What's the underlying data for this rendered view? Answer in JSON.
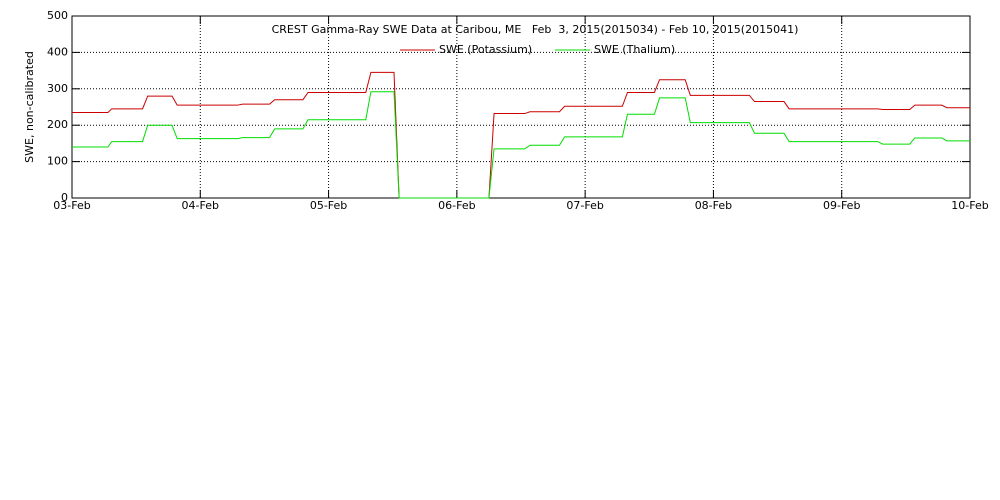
{
  "chart_data": {
    "type": "line",
    "title": "CREST Gamma-Ray SWE Data at Caribou, ME   Feb  3, 2015(2015034) - Feb 10, 2015(2015041)",
    "y_label": "SWE, non-calibrated",
    "x": [
      0,
      0.28,
      0.31,
      0.55,
      0.59,
      0.78,
      0.82,
      1.29,
      1.33,
      1.54,
      1.58,
      1.8,
      1.84,
      2.29,
      2.33,
      2.51,
      2.55,
      3.25,
      3.29,
      3.53,
      3.57,
      3.8,
      3.84,
      4.29,
      4.33,
      4.54,
      4.58,
      4.78,
      4.82,
      5.28,
      5.32,
      5.55,
      5.59,
      6.28,
      6.32,
      6.53,
      6.57,
      6.78,
      6.82,
      7
    ],
    "series": [
      {
        "name": "SWE (Potassium)",
        "color": "#cc0000",
        "values": [
          235,
          235,
          245,
          245,
          280,
          280,
          255,
          255,
          258,
          258,
          270,
          270,
          290,
          290,
          345,
          345,
          0,
          0,
          232,
          232,
          237,
          237,
          252,
          252,
          290,
          290,
          325,
          325,
          282,
          282,
          265,
          265,
          245,
          245,
          243,
          243,
          255,
          255,
          248,
          248
        ]
      },
      {
        "name": "SWE (Thalium)",
        "color": "#00dd00",
        "values": [
          140,
          140,
          155,
          155,
          200,
          200,
          163,
          163,
          166,
          166,
          190,
          190,
          215,
          215,
          292,
          292,
          0,
          0,
          135,
          135,
          145,
          145,
          168,
          168,
          230,
          230,
          275,
          275,
          207,
          207,
          178,
          178,
          155,
          155,
          148,
          148,
          165,
          165,
          157,
          157
        ]
      }
    ],
    "xlim": [
      0,
      7
    ],
    "xticks": [
      {
        "value": 0,
        "label": "03-Feb"
      },
      {
        "value": 1,
        "label": "04-Feb"
      },
      {
        "value": 2,
        "label": "05-Feb"
      },
      {
        "value": 3,
        "label": "06-Feb"
      },
      {
        "value": 4,
        "label": "07-Feb"
      },
      {
        "value": 5,
        "label": "08-Feb"
      },
      {
        "value": 6,
        "label": "09-Feb"
      },
      {
        "value": 7,
        "label": "10-Feb"
      }
    ],
    "ylim": [
      0,
      500
    ],
    "yticks": [
      0,
      100,
      200,
      300,
      400,
      500
    ],
    "grid": true
  }
}
